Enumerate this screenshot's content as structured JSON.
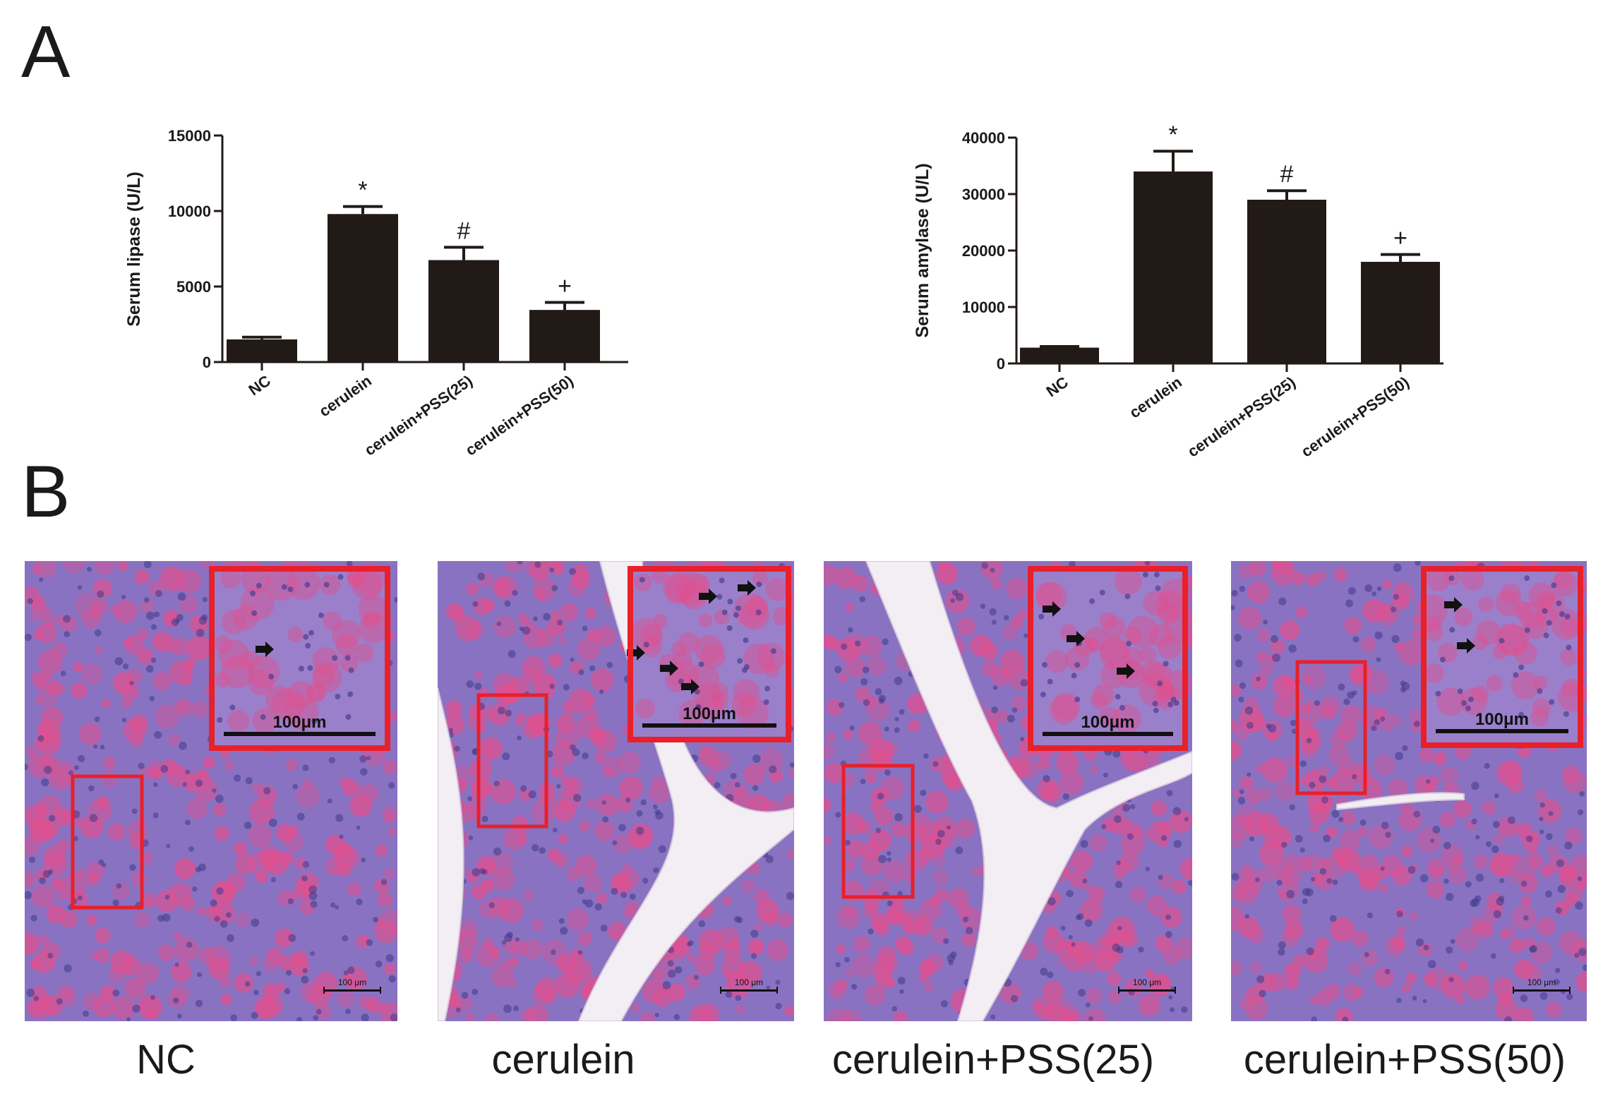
{
  "panels": {
    "a": "A",
    "b": "B"
  },
  "colors": {
    "bar": "#221a17",
    "frame": "#e8202a",
    "tissue": "#8a72c2",
    "stain": "#e0508f",
    "space": "#f3eef3"
  },
  "chart_data": [
    {
      "type": "bar",
      "categories": [
        "NC",
        "cerulein",
        "cerulein+PSS(25)",
        "cerulein+PSS(50)"
      ],
      "values": [
        1500,
        9800,
        6750,
        3450
      ],
      "errors": [
        150,
        500,
        850,
        500
      ],
      "significance": [
        "",
        "*",
        "#",
        "+"
      ],
      "ylabel": "Serum lipase (U/L)",
      "yticks": [
        "0",
        "5000",
        "10000",
        "15000"
      ],
      "ylim": [
        0,
        15000
      ]
    },
    {
      "type": "bar",
      "categories": [
        "NC",
        "cerulein",
        "cerulein+PSS(25)",
        "cerulein+PSS(50)"
      ],
      "values": [
        2800,
        34000,
        29000,
        18000
      ],
      "errors": [
        200,
        3600,
        1600,
        1300
      ],
      "significance": [
        "",
        "*",
        "#",
        "+"
      ],
      "ylabel": "Serum amylase (U/L)",
      "yticks": [
        "0",
        "10000",
        "20000",
        "30000",
        "40000"
      ],
      "ylim": [
        0,
        40000
      ]
    }
  ],
  "histology": [
    {
      "label": "NC",
      "inset_scale": "100μm",
      "scale": "100 μm",
      "gaps": "none"
    },
    {
      "label": "cerulein",
      "inset_scale": "100μm",
      "scale": "100 μm",
      "gaps": "large"
    },
    {
      "label": "cerulein+PSS(25)",
      "inset_scale": "100μm",
      "scale": "100 μm",
      "gaps": "large"
    },
    {
      "label": "cerulein+PSS(50)",
      "inset_scale": "100μm",
      "scale": "100 μm",
      "gaps": "small"
    }
  ]
}
